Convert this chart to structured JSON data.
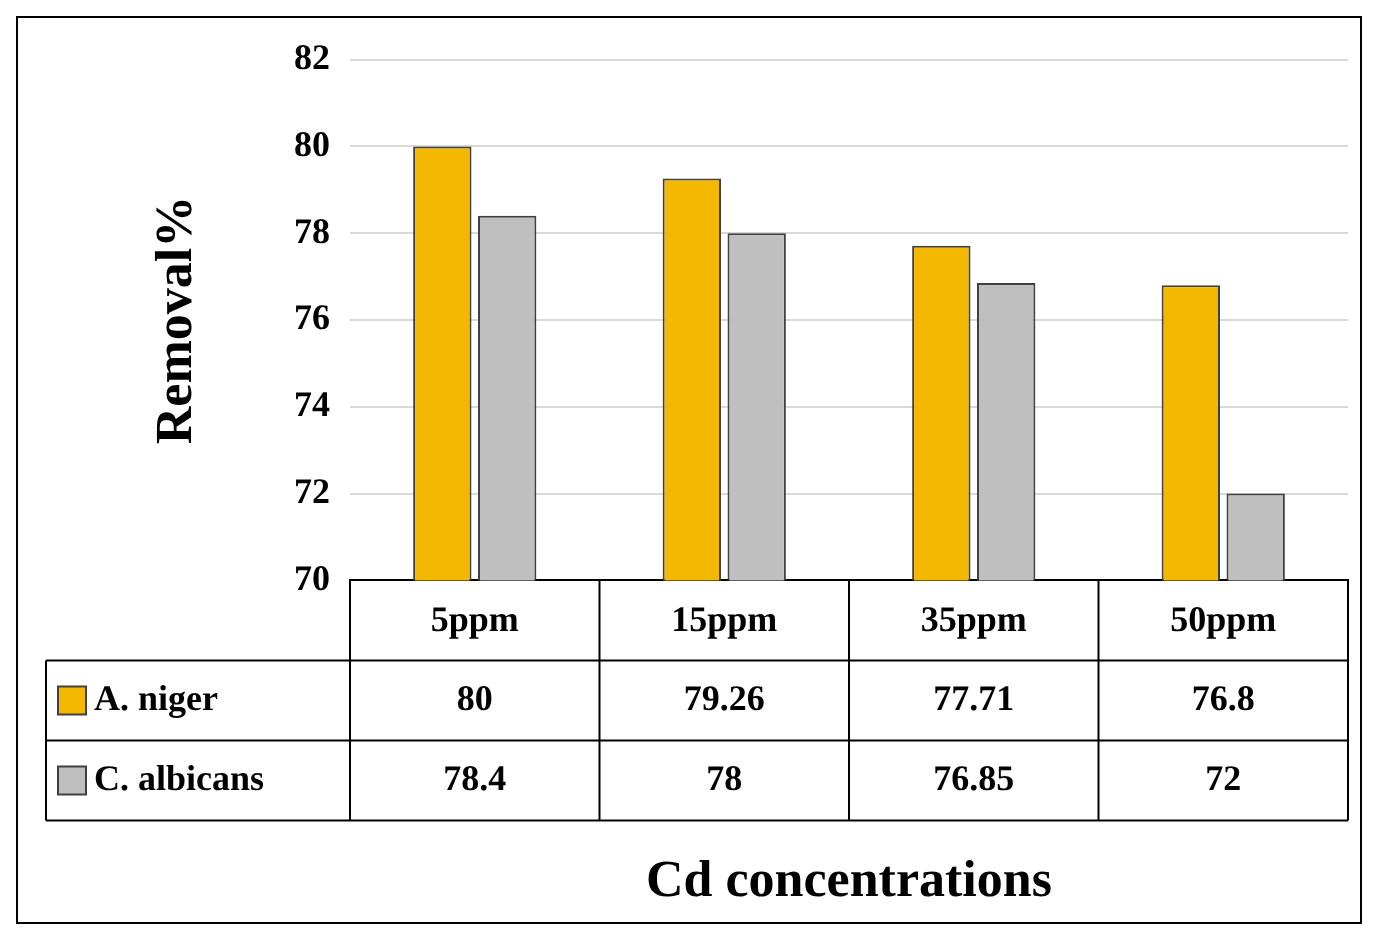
{
  "chart_data": {
    "type": "bar",
    "xlabel": "Cd concentrations",
    "ylabel": "Removal%",
    "categories": [
      "5ppm",
      "15ppm",
      "35ppm",
      "50ppm"
    ],
    "series": [
      {
        "name": "A. niger",
        "color": "#f5b800",
        "values": [
          80,
          79.26,
          77.71,
          76.8
        ]
      },
      {
        "name": "C. albicans",
        "color": "#bfbfbf",
        "values": [
          78.4,
          78,
          76.85,
          72
        ]
      }
    ],
    "ylim": [
      70,
      82
    ],
    "yticks": [
      70,
      72,
      74,
      76,
      78,
      80,
      82
    ],
    "grid": "y",
    "legend": "bottom",
    "data_labels": true
  }
}
